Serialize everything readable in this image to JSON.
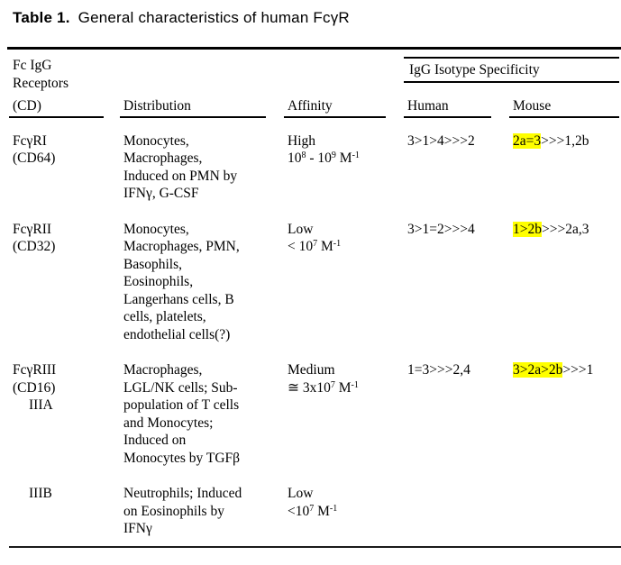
{
  "title": {
    "label": "Table 1.",
    "text": "General characteristics of human FcγR"
  },
  "table": {
    "group_header": "IgG Isotype Specificity",
    "highlight_color": "#ffff00",
    "columns": {
      "receptor": [
        "Fc IgG",
        "Receptors",
        "(CD)"
      ],
      "distribution": "Distribution",
      "affinity": "Affinity",
      "human": "Human",
      "mouse": "Mouse"
    },
    "rows": [
      {
        "receptor": [
          {
            "t": "FcγRI"
          },
          {
            "t": "(CD64)"
          }
        ],
        "distribution": [
          "Monocytes,",
          "Macrophages,",
          "Induced on PMN by",
          "IFNγ, G-CSF"
        ],
        "affinity": [
          [
            {
              "t": "High"
            }
          ],
          [
            {
              "t": "10"
            },
            {
              "t": "8",
              "sup": true
            },
            {
              "t": " - 10"
            },
            {
              "t": "9",
              "sup": true
            },
            {
              "t": " M"
            },
            {
              "t": "-1",
              "sup": true
            }
          ]
        ],
        "human": "3>1>4>>>2",
        "mouse": [
          {
            "t": "2a=3",
            "highlight": true
          },
          {
            "t": ">>>1,2b"
          }
        ]
      },
      {
        "receptor": [
          {
            "t": "FcγRII"
          },
          {
            "t": "(CD32)"
          }
        ],
        "distribution": [
          "Monocytes,",
          "Macrophages, PMN,",
          "Basophils,",
          "Eosinophils,",
          "Langerhans cells, B",
          "cells, platelets,",
          "endothelial cells(?)"
        ],
        "affinity": [
          [
            {
              "t": "Low"
            }
          ],
          [
            {
              "t": "< 10"
            },
            {
              "t": "7",
              "sup": true
            },
            {
              "t": " M"
            },
            {
              "t": "-1",
              "sup": true
            }
          ]
        ],
        "human": "3>1=2>>>4",
        "mouse": [
          {
            "t": "1>2b",
            "highlight": true
          },
          {
            "t": ">>>2a,3"
          }
        ]
      },
      {
        "receptor": [
          {
            "t": "FcγRIII"
          },
          {
            "t": "(CD16)"
          },
          {
            "t": "IIIA",
            "indent": true
          }
        ],
        "distribution": [
          "Macrophages,",
          "LGL/NK cells; Sub-",
          "population of T cells",
          "and Monocytes;",
          "Induced on",
          "Monocytes by TGFβ"
        ],
        "affinity": [
          [
            {
              "t": "Medium"
            }
          ],
          [
            {
              "t": "≅ 3x10"
            },
            {
              "t": "7",
              "sup": true
            },
            {
              "t": " M"
            },
            {
              "t": "-1",
              "sup": true
            }
          ]
        ],
        "human": "1=3>>>2,4",
        "mouse": [
          {
            "t": "3>2a>2b",
            "highlight": true
          },
          {
            "t": ">>>1"
          }
        ]
      },
      {
        "receptor": [
          {
            "t": "IIIB",
            "indent": true
          }
        ],
        "distribution": [
          "Neutrophils; Induced",
          "on Eosinophils by",
          "IFNγ"
        ],
        "affinity": [
          [
            {
              "t": "Low"
            }
          ],
          [
            {
              "t": "<10"
            },
            {
              "t": "7",
              "sup": true
            },
            {
              "t": " M"
            },
            {
              "t": "-1",
              "sup": true
            }
          ]
        ],
        "human": "",
        "mouse": []
      }
    ]
  }
}
